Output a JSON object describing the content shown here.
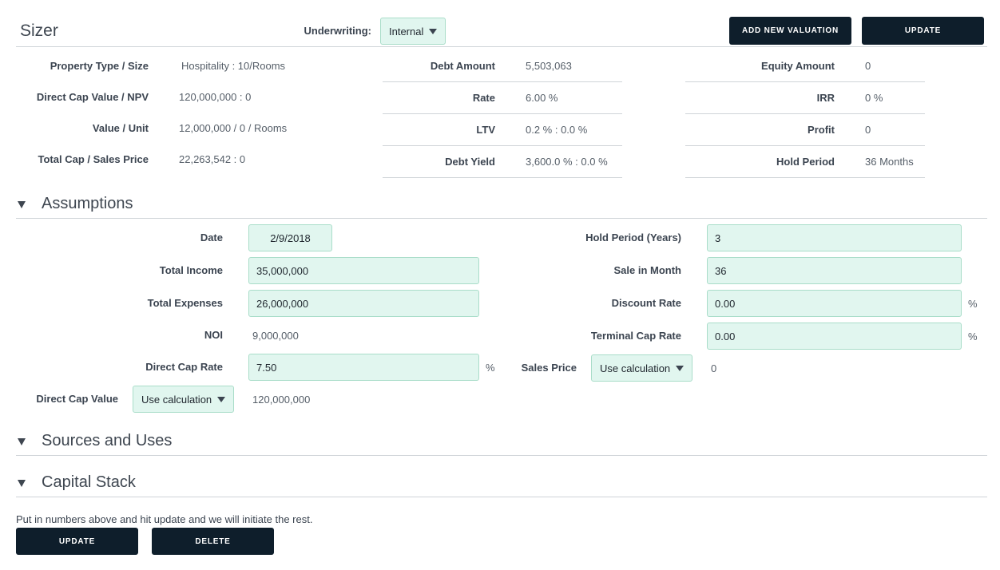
{
  "header": {
    "title": "Sizer",
    "underwriting_label": "Underwriting:",
    "underwriting_value": "Internal",
    "add_valuation_label": "ADD NEW VALUATION",
    "update_label": "UPDATE"
  },
  "summary": {
    "col1": [
      {
        "label": "Property Type / Size",
        "value": "Hospitality  :  10/Rooms"
      },
      {
        "label": "Direct Cap Value / NPV",
        "value": "120,000,000 : 0"
      },
      {
        "label": "Value / Unit",
        "value": "12,000,000 / 0 /  Rooms"
      },
      {
        "label": "Total Cap / Sales Price",
        "value": "22,263,542  :  0"
      }
    ],
    "col2": [
      {
        "label": "Debt Amount",
        "value": "5,503,063"
      },
      {
        "label": "Rate",
        "value": "6.00 %"
      },
      {
        "label": "LTV",
        "value": "0.2 %   :  0.0 %"
      },
      {
        "label": "Debt Yield",
        "value": "3,600.0 %  :  0.0 %"
      }
    ],
    "col3": [
      {
        "label": "Equity Amount",
        "value": "0"
      },
      {
        "label": "IRR",
        "value": "0 %"
      },
      {
        "label": "Profit",
        "value": "0"
      },
      {
        "label": "Hold Period",
        "value": "36  Months"
      }
    ]
  },
  "assumptions": {
    "title": "Assumptions",
    "date_label": "Date",
    "date_value": "2/9/2018",
    "total_income_label": "Total Income",
    "total_income_value": "35,000,000",
    "total_expenses_label": "Total Expenses",
    "total_expenses_value": "26,000,000",
    "noi_label": "NOI",
    "noi_value": "9,000,000",
    "direct_cap_rate_label": "Direct Cap Rate",
    "direct_cap_rate_value": "7.50",
    "direct_cap_value_label": "Direct Cap Value",
    "direct_cap_value_select": "Use calculation",
    "direct_cap_value_result": "120,000,000",
    "hold_period_label": "Hold Period (Years)",
    "hold_period_value": "3",
    "sale_in_month_label": "Sale in Month",
    "sale_in_month_value": "36",
    "discount_rate_label": "Discount Rate",
    "discount_rate_value": "0.00",
    "terminal_cap_rate_label": "Terminal Cap Rate",
    "terminal_cap_rate_value": "0.00",
    "sales_price_label": "Sales Price",
    "sales_price_select": "Use calculation",
    "sales_price_result": "0",
    "percent": "%"
  },
  "sections": {
    "sources_uses": "Sources and Uses",
    "capital_stack": "Capital Stack"
  },
  "footer": {
    "message": "Put in numbers above and hit update and we will initiate the rest.",
    "update_label": "UPDATE",
    "delete_label": "DELETE"
  }
}
